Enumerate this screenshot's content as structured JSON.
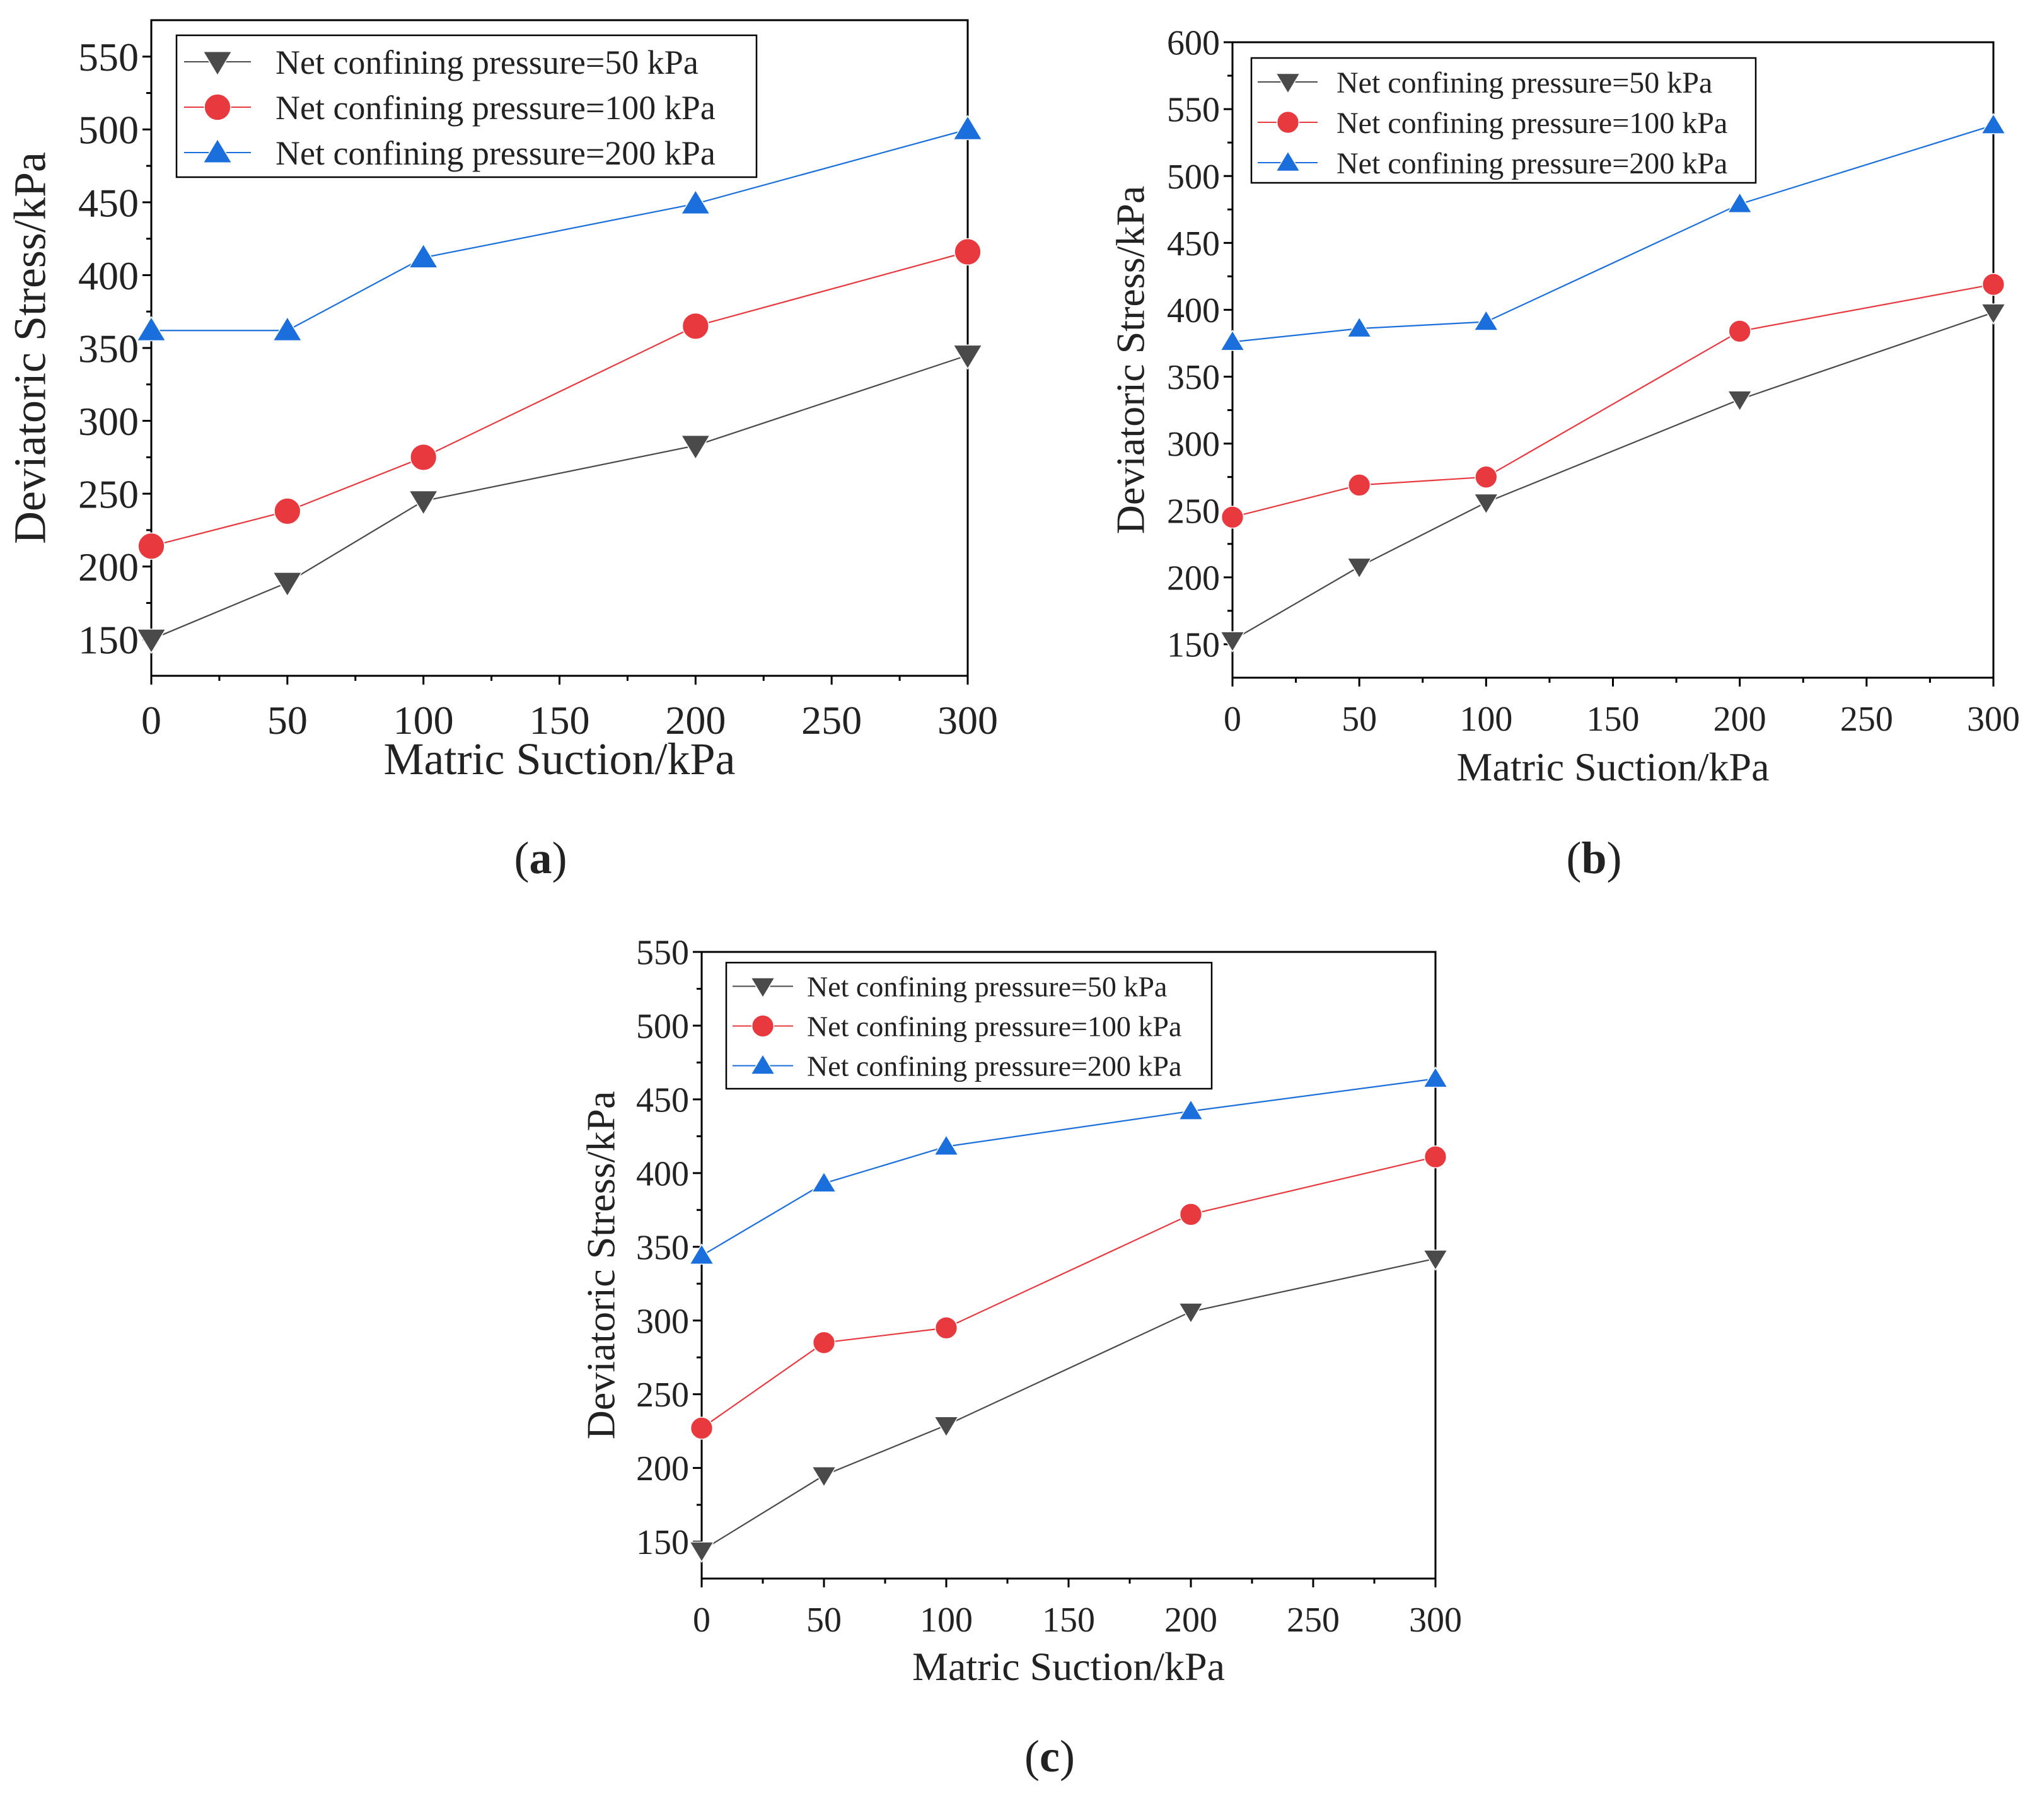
{
  "chart_data": [
    {
      "type": "line",
      "panel_label": "a",
      "title": "",
      "xlabel": "Matric Suction/kPa",
      "ylabel": "Deviatoric Stress/kPa",
      "xlim": [
        0,
        300
      ],
      "ylim": [
        125,
        575
      ],
      "xticks": [
        0,
        50,
        100,
        150,
        200,
        250,
        300
      ],
      "yticks": [
        150,
        200,
        250,
        300,
        350,
        400,
        450,
        500,
        550
      ],
      "x": [
        0,
        50,
        100,
        200,
        300
      ],
      "legend": "top-left",
      "grid": false,
      "series": [
        {
          "name": "Net confining pressure=50 kPa",
          "marker": "triangle-down",
          "color": "#4a4a4a",
          "values": [
            150,
            189,
            245,
            283,
            345
          ]
        },
        {
          "name": "Net confining pressure=100 kPa",
          "marker": "circle",
          "color": "#e8393f",
          "values": [
            214,
            238,
            275,
            365,
            416
          ]
        },
        {
          "name": "Net confining pressure=200 kPa",
          "marker": "triangle-up",
          "color": "#1a6fdc",
          "values": [
            362,
            362,
            412,
            449,
            500
          ]
        }
      ]
    },
    {
      "type": "line",
      "panel_label": "b",
      "title": "",
      "xlabel": "Matric Suction/kPa",
      "ylabel": "Deviatoric Stress/kPa",
      "xlim": [
        0,
        300
      ],
      "ylim": [
        125,
        600
      ],
      "xticks": [
        0,
        50,
        100,
        150,
        200,
        250,
        300
      ],
      "yticks": [
        150,
        200,
        250,
        300,
        350,
        400,
        450,
        500,
        550,
        600
      ],
      "x": [
        0,
        50,
        100,
        200,
        300
      ],
      "legend": "top-left",
      "grid": false,
      "series": [
        {
          "name": "Net confining pressure=50 kPa",
          "marker": "triangle-down",
          "color": "#4a4a4a",
          "values": [
            153,
            208,
            256,
            333,
            398
          ]
        },
        {
          "name": "Net confining pressure=100 kPa",
          "marker": "circle",
          "color": "#e8393f",
          "values": [
            245,
            269,
            275,
            384,
            419
          ]
        },
        {
          "name": "Net confining pressure=200 kPa",
          "marker": "triangle-up",
          "color": "#1a6fdc",
          "values": [
            376,
            386,
            391,
            479,
            538
          ]
        }
      ]
    },
    {
      "type": "line",
      "panel_label": "c",
      "title": "",
      "xlabel": "Matric Suction/kPa",
      "ylabel": "Deviatoric Stress/kPa",
      "xlim": [
        0,
        300
      ],
      "ylim": [
        125,
        550
      ],
      "xticks": [
        0,
        50,
        100,
        150,
        200,
        250,
        300
      ],
      "yticks": [
        150,
        200,
        250,
        300,
        350,
        400,
        450,
        500,
        550
      ],
      "x": [
        0,
        50,
        100,
        200,
        300
      ],
      "legend": "top-left",
      "grid": false,
      "series": [
        {
          "name": "Net confining pressure=50 kPa",
          "marker": "triangle-down",
          "color": "#4a4a4a",
          "values": [
            144,
            195,
            229,
            306,
            342
          ]
        },
        {
          "name": "Net confining pressure=100 kPa",
          "marker": "circle",
          "color": "#e8393f",
          "values": [
            227,
            285,
            295,
            372,
            411
          ]
        },
        {
          "name": "Net confining pressure=200 kPa",
          "marker": "triangle-up",
          "color": "#1a6fdc",
          "values": [
            344,
            393,
            418,
            442,
            464
          ]
        }
      ]
    }
  ]
}
